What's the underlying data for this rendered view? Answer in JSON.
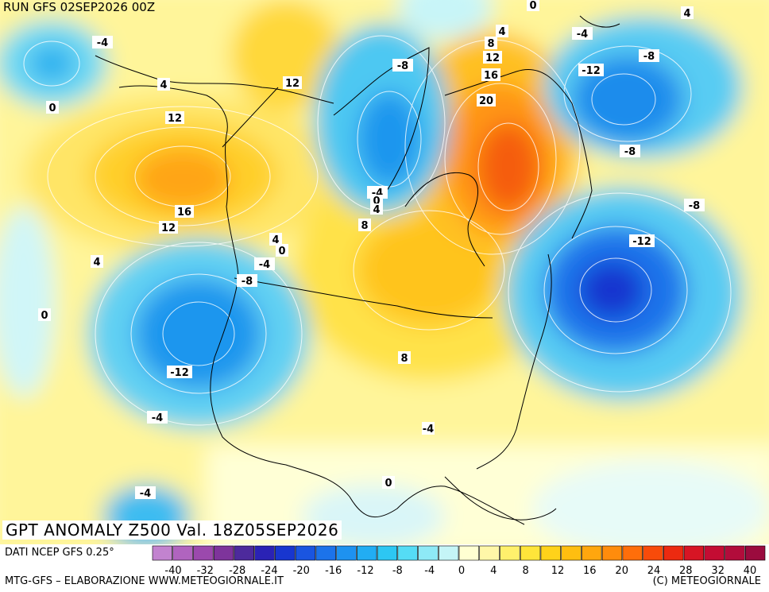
{
  "header": {
    "run_title": "RUN GFS 02SEP2026 00Z"
  },
  "map": {
    "title": "GPT ANOMALY Z500 Val. 18Z05SEP2026",
    "contour_labels": [
      "-4",
      "0",
      "4",
      "12",
      "16",
      "12",
      "-8",
      "-4",
      "0",
      "4",
      "8",
      "4",
      "0",
      "-4",
      "12",
      "20",
      "16",
      "12",
      "8",
      "4",
      "0",
      "4",
      "-4",
      "-12",
      "-8",
      "-8",
      "-8",
      "-12",
      "-8",
      "0",
      "-12",
      "-4",
      "4",
      "8",
      "-4",
      "0",
      "-4"
    ]
  },
  "legend": {
    "source": "DATI NCEP GFS 0.25°",
    "tick_labels": [
      "-40",
      "-32",
      "-28",
      "-24",
      "-20",
      "-16",
      "-12",
      "-8",
      "-4",
      "0",
      "4",
      "8",
      "12",
      "16",
      "20",
      "24",
      "28",
      "32",
      "40"
    ],
    "colors": [
      "#c283cf",
      "#b064bf",
      "#9b49ad",
      "#7e349b",
      "#4d2a9c",
      "#2a22b5",
      "#1836cf",
      "#1a55e0",
      "#1c73ea",
      "#1e92f0",
      "#22adf3",
      "#2dc7f3",
      "#55dcf5",
      "#8ee9f6",
      "#c5f5f7",
      "#ffffd2",
      "#fff7a8",
      "#fff06c",
      "#ffe53a",
      "#ffd21a",
      "#ffbe10",
      "#ffa60e",
      "#ff8c0c",
      "#ff6e0a",
      "#f84b0a",
      "#ec2a10",
      "#d71524",
      "#c40c33",
      "#b20c3b",
      "#9b0b3e"
    ]
  },
  "footer": {
    "credit": "MTG-GFS – ELABORAZIONE WWW.METEOGIORNALE.IT",
    "copyright": "(C) METEOGIORNALE"
  }
}
